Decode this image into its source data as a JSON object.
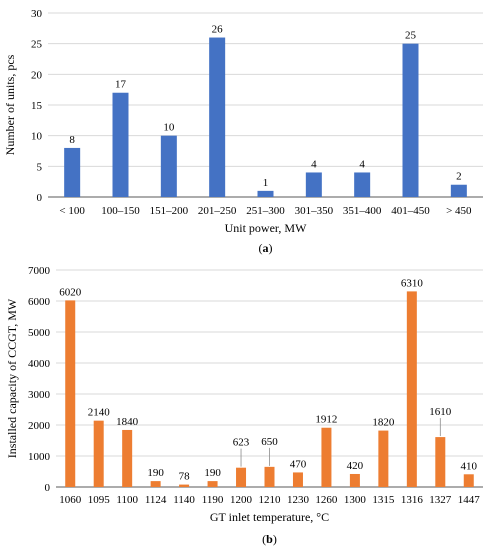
{
  "colors": {
    "bar_a": "#4472c4",
    "bar_b": "#ed7d31",
    "grid": "#d9d9d9",
    "axis": "#595959"
  },
  "chart_data": [
    {
      "type": "bar",
      "panel_label": "(a)",
      "title": "",
      "xlabel": "Unit power, MW",
      "ylabel": "Number of units, pcs",
      "ylim": [
        0,
        30
      ],
      "yticks": [
        0,
        5,
        10,
        15,
        20,
        25,
        30
      ],
      "grid": true,
      "categories": [
        "< 100",
        "100–150",
        "151–200",
        "201–250",
        "251–300",
        "301–350",
        "351–400",
        "401–450",
        "> 450"
      ],
      "values": [
        8,
        17,
        10,
        26,
        1,
        4,
        4,
        25,
        2
      ],
      "data_labels": [
        "8",
        "17",
        "10",
        "26",
        "1",
        "4",
        "4",
        "25",
        "2"
      ]
    },
    {
      "type": "bar",
      "panel_label": "(b)",
      "title": "",
      "xlabel": "GT inlet temperature, °C",
      "ylabel": "Installed capacity of CCGT, MW",
      "ylim": [
        0,
        7000
      ],
      "yticks": [
        0,
        1000,
        2000,
        3000,
        4000,
        5000,
        6000,
        7000
      ],
      "grid": true,
      "categories": [
        "1060",
        "1095",
        "1100",
        "1124",
        "1140",
        "1190",
        "1200",
        "1210",
        "1230",
        "1260",
        "1300",
        "1315",
        "1316",
        "1327",
        "1447"
      ],
      "values": [
        6020,
        2140,
        1840,
        190,
        78,
        190,
        623,
        650,
        470,
        1912,
        420,
        1820,
        6310,
        1610,
        410
      ],
      "data_labels": [
        "6020",
        "2140",
        "1840",
        "190",
        "78",
        "190",
        "623",
        "650",
        "470",
        "1912",
        "420",
        "1820",
        "6310",
        "1610",
        "410"
      ]
    }
  ]
}
